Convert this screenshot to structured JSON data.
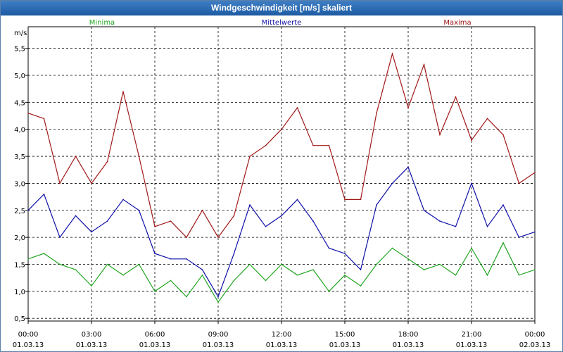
{
  "window": {
    "title": "Windgeschwindigkeit [m/s] skaliert"
  },
  "chart_data": {
    "type": "line",
    "title": "Windgeschwindigkeit [m/s] skaliert",
    "ylabel": "m/s",
    "xlabel": "",
    "ylim": [
      0.45,
      5.9
    ],
    "xlim": [
      0,
      24
    ],
    "grid": true,
    "y_ticks": [
      "0,5",
      "1,0",
      "1,5",
      "2,0",
      "2,5",
      "3,0",
      "3,5",
      "4,0",
      "4,5",
      "5,0",
      "5,5"
    ],
    "y_tick_values": [
      0.5,
      1.0,
      1.5,
      2.0,
      2.5,
      3.0,
      3.5,
      4.0,
      4.5,
      5.0,
      5.5
    ],
    "x_ticks": [
      {
        "time": "00:00",
        "date": "01.03.13",
        "h": 0
      },
      {
        "time": "03:00",
        "date": "01.03.13",
        "h": 3
      },
      {
        "time": "06:00",
        "date": "01.03.13",
        "h": 6
      },
      {
        "time": "09:00",
        "date": "01.03.13",
        "h": 9
      },
      {
        "time": "12:00",
        "date": "01.03.13",
        "h": 12
      },
      {
        "time": "15:00",
        "date": "01.03.13",
        "h": 15
      },
      {
        "time": "18:00",
        "date": "01.03.13",
        "h": 18
      },
      {
        "time": "21:00",
        "date": "01.03.13",
        "h": 21
      },
      {
        "time": "00:00",
        "date": "02.03.13",
        "h": 24
      }
    ],
    "series": [
      {
        "name": "Minima",
        "color": "#1fa51f",
        "x": [
          0,
          0.75,
          1.5,
          2.25,
          3,
          3.75,
          4.5,
          5.25,
          6,
          6.75,
          7.5,
          8.25,
          9,
          9.75,
          10.5,
          11.25,
          12,
          12.75,
          13.5,
          14.25,
          15,
          15.75,
          16.5,
          17.25,
          18,
          18.75,
          19.5,
          20.25,
          21,
          21.75,
          22.5,
          23.25,
          24
        ],
        "values": [
          1.6,
          1.7,
          1.5,
          1.4,
          1.1,
          1.5,
          1.3,
          1.5,
          1.0,
          1.2,
          0.9,
          1.3,
          0.8,
          1.2,
          1.5,
          1.2,
          1.5,
          1.3,
          1.4,
          1.0,
          1.3,
          1.1,
          1.5,
          1.8,
          1.6,
          1.4,
          1.5,
          1.3,
          1.8,
          1.3,
          1.9,
          1.3,
          1.4
        ]
      },
      {
        "name": "Mittelwerte",
        "color": "#0f0fa8",
        "x": [
          0,
          0.75,
          1.5,
          2.25,
          3,
          3.75,
          4.5,
          5.25,
          6,
          6.75,
          7.5,
          8.25,
          9,
          9.75,
          10.5,
          11.25,
          12,
          12.75,
          13.5,
          14.25,
          15,
          15.75,
          16.5,
          17.25,
          18,
          18.75,
          19.5,
          20.25,
          21,
          21.75,
          22.5,
          23.25,
          24
        ],
        "values": [
          2.5,
          2.8,
          2.0,
          2.4,
          2.1,
          2.3,
          2.7,
          2.5,
          1.7,
          1.6,
          1.6,
          1.4,
          0.9,
          1.7,
          2.6,
          2.2,
          2.4,
          2.7,
          2.3,
          1.8,
          1.7,
          1.4,
          2.6,
          3.0,
          3.3,
          2.5,
          2.3,
          2.2,
          3.0,
          2.2,
          2.6,
          2.0,
          2.1
        ]
      },
      {
        "name": "Maxima",
        "color": "#a01818",
        "x": [
          0,
          0.75,
          1.5,
          2.25,
          3,
          3.75,
          4.5,
          5.25,
          6,
          6.75,
          7.5,
          8.25,
          9,
          9.75,
          10.5,
          11.25,
          12,
          12.75,
          13.5,
          14.25,
          15,
          15.75,
          16.5,
          17.25,
          18,
          18.75,
          19.5,
          20.25,
          21,
          21.75,
          22.5,
          23.25,
          24
        ],
        "values": [
          4.3,
          4.2,
          3.0,
          3.5,
          3.0,
          3.4,
          4.7,
          3.5,
          2.2,
          2.3,
          2.0,
          2.5,
          2.0,
          2.4,
          3.5,
          3.7,
          4.0,
          4.4,
          3.7,
          3.7,
          2.7,
          2.7,
          4.3,
          5.4,
          4.4,
          5.2,
          3.9,
          4.6,
          3.8,
          4.2,
          3.9,
          3.0,
          3.2
        ]
      }
    ]
  }
}
